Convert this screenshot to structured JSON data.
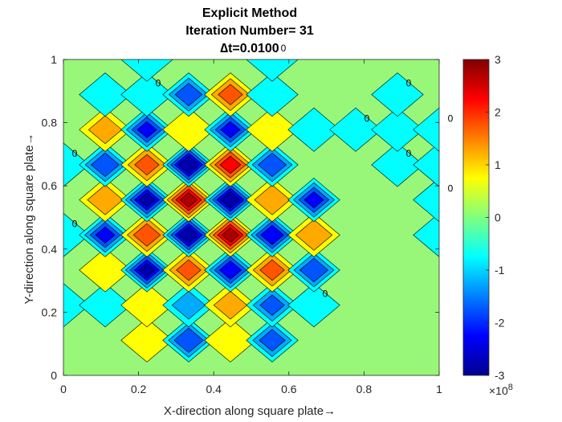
{
  "chart_data": {
    "type": "heatmap",
    "subtype": "filled contour",
    "title_lines": [
      "Explicit Method",
      "Iteration Number= 31",
      "∆t=0.0100"
    ],
    "xlabel": "X-direction along square plate→",
    "ylabel": "Y-direction along square plate→",
    "xlim": [
      0,
      1
    ],
    "ylim": [
      0,
      1
    ],
    "xticks": [
      "0",
      "0.2",
      "0.4",
      "0.6",
      "0.8",
      "1"
    ],
    "yticks": [
      "0",
      "0.2",
      "0.4",
      "0.6",
      "0.8",
      "1"
    ],
    "colorbar": {
      "colormap": "jet",
      "range": [
        -3,
        3
      ],
      "ticks": [
        "3",
        "2",
        "1",
        "0",
        "-1",
        "-2",
        "-3"
      ],
      "exponent_label": "×10",
      "exponent_value": "8",
      "scale": 100000000
    },
    "grid_x": [
      0,
      0.1111,
      0.2222,
      0.3333,
      0.4444,
      0.5556,
      0.6667,
      0.7778,
      0.8889,
      1
    ],
    "grid_y": [
      0,
      0.1111,
      0.2222,
      0.3333,
      0.4444,
      0.5556,
      0.6667,
      0.7778,
      0.8889,
      1
    ],
    "z_rows_top_to_bottom": [
      [
        0,
        0,
        -0.6,
        0,
        0,
        -0.6,
        0,
        0,
        0,
        0
      ],
      [
        0,
        -0.8,
        -0.8,
        -1.7,
        1.5,
        -0.8,
        0,
        0,
        -0.7,
        -0.4
      ],
      [
        0,
        1.0,
        -2.0,
        0.8,
        -2.0,
        0.9,
        -0.8,
        -0.8,
        -0.8,
        -0.7
      ],
      [
        -0.6,
        -1.8,
        1.5,
        -2.9,
        2.1,
        -1.8,
        -0.3,
        0,
        -0.6,
        -0.8
      ],
      [
        0,
        1.2,
        -2.5,
        2.6,
        -2.8,
        1.2,
        -2.0,
        0,
        0,
        -0.8
      ],
      [
        -0.8,
        -2.0,
        1.7,
        -2.8,
        2.6,
        -2.3,
        1.3,
        -0.2,
        0,
        -0.5
      ],
      [
        0,
        0.7,
        -2.5,
        1.5,
        -2.2,
        1.5,
        -1.8,
        -0.2,
        -0.3,
        0
      ],
      [
        -0.5,
        -0.8,
        0.7,
        -1.0,
        1.0,
        -1.5,
        -0.8,
        0,
        0,
        0
      ],
      [
        0,
        0,
        0.8,
        -1.9,
        0.7,
        -1.6,
        0,
        -0.3,
        0,
        0
      ],
      [
        0,
        0,
        0,
        -0.2,
        0,
        0,
        0,
        0,
        0,
        0
      ]
    ],
    "contour_levels": [
      -3,
      -2.5,
      -2,
      -1.5,
      -1,
      -0.5,
      0.5,
      1,
      1.5,
      2,
      2.5,
      3
    ],
    "inline_contour_label": "0",
    "grid": false,
    "legend": "colorbar-right"
  }
}
